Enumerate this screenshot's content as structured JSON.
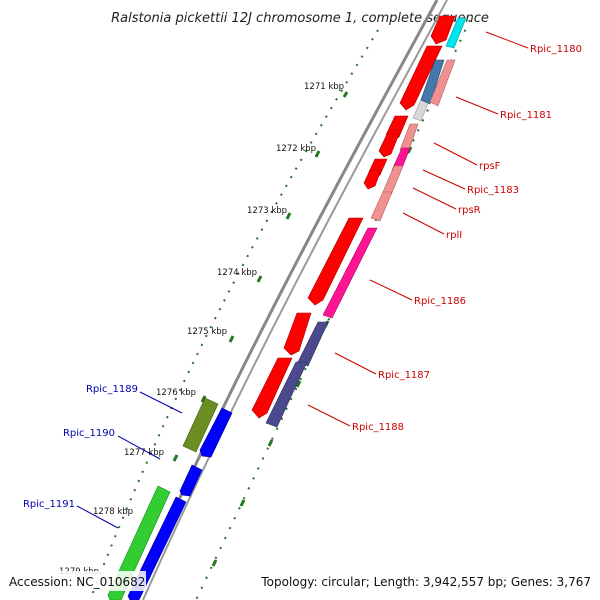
{
  "title": "Ralstonia pickettii 12J chromosome 1, complete sequence",
  "footer": {
    "accession": "Accession: NC_010682",
    "summary": "Topology: circular; Length: 3,942,557 bp; Genes: 3,767"
  },
  "colors": {
    "forward_label": "#cc0000",
    "reverse_label": "#0000aa",
    "ticks": "#227722",
    "backbone": "#888888"
  },
  "scale_labels": [
    "1271 kbp",
    "1272 kbp",
    "1273 kbp",
    "1274 kbp",
    "1275 kbp",
    "1276 kbp",
    "1277 kbp",
    "1278 kbp",
    "1279 kbp"
  ],
  "gene_labels": {
    "forward": [
      "Rpic_1180",
      "Rpic_1181",
      "rpsF",
      "Rpic_1183",
      "rpsR",
      "rplI",
      "Rpic_1186",
      "Rpic_1187",
      "Rpic_1188"
    ],
    "reverse": [
      "Rpic_1189",
      "Rpic_1190",
      "Rpic_1191"
    ]
  },
  "legend_features": {
    "forward_cds": "red",
    "reverse_cds": "blue",
    "rrna": "cyan",
    "gene_categories": [
      "pink",
      "magenta",
      "steel-blue",
      "slate-purple",
      "olive-green",
      "green"
    ]
  }
}
